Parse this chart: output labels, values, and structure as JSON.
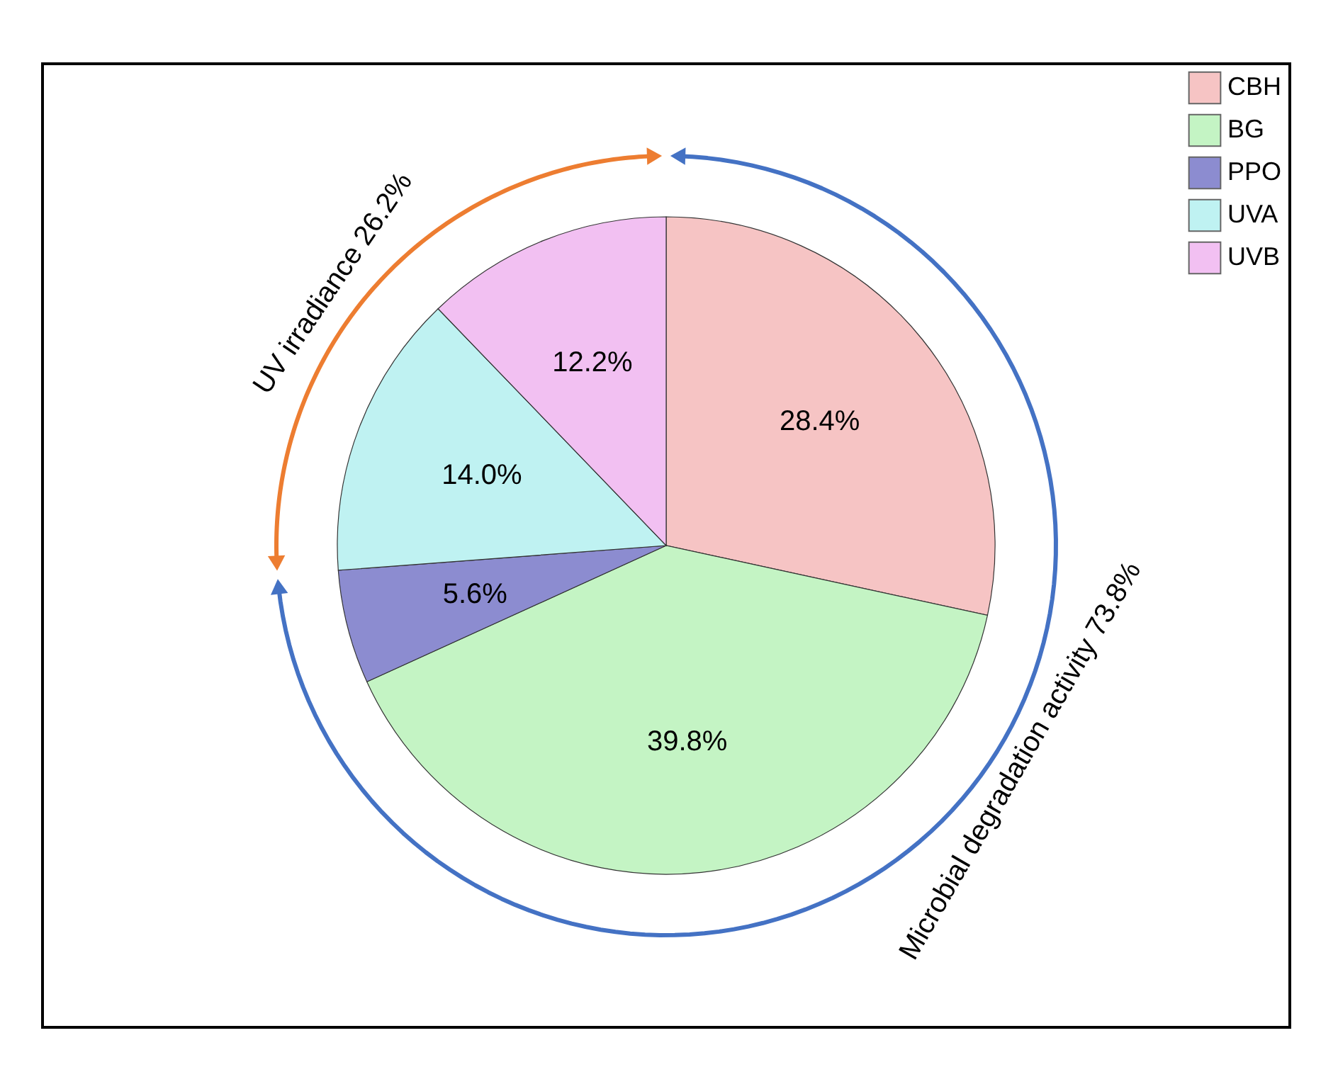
{
  "chart_data": {
    "type": "pie",
    "categories": [
      "CBH",
      "BG",
      "PPO",
      "UVA",
      "UVB"
    ],
    "values": [
      28.4,
      39.8,
      5.6,
      14.0,
      12.2
    ],
    "value_labels": [
      "28.4%",
      "39.8%",
      "5.6%",
      "14.0%",
      "12.2%"
    ],
    "colors": [
      "#f6c4c4",
      "#c4f4c4",
      "#8c8cd0",
      "#bff2f2",
      "#f2c0f2"
    ],
    "legend": "top right",
    "annotations": [
      "UV irradiance 26.2%",
      "Microbial degradation activity 73.8%"
    ]
  }
}
